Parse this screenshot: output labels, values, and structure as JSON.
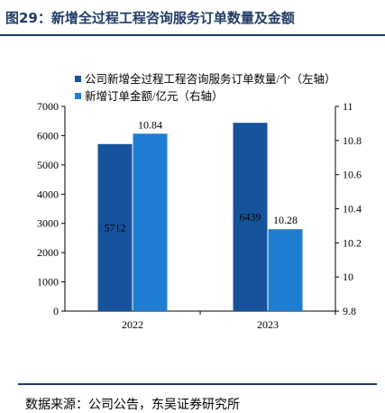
{
  "header": {
    "title": "图29：新增全过程工程咨询服务订单数量及金额"
  },
  "footer": {
    "source": "数据来源：公司公告，东吴证券研究所"
  },
  "colors": {
    "series_count": "#17539c",
    "series_amount": "#1f7dd1",
    "header_rule": "#1f3b66"
  },
  "chart_data": {
    "type": "bar",
    "categories": [
      "2022",
      "2023"
    ],
    "series": [
      {
        "name": "公司新增全过程工程咨询服务订单数量/个（左轴）",
        "values": [
          5712,
          6439
        ],
        "labels": [
          "5712",
          "6439"
        ],
        "axis": "left",
        "color": "#17539c"
      },
      {
        "name": "新增订单金额/亿元（右轴）",
        "values": [
          10.84,
          10.28
        ],
        "labels": [
          "10.84",
          "10.28"
        ],
        "axis": "right",
        "color": "#1f7dd1"
      }
    ],
    "left_axis": {
      "ylim": [
        0,
        7000
      ],
      "ticks": [
        "0",
        "1000",
        "2000",
        "3000",
        "4000",
        "5000",
        "6000",
        "7000"
      ]
    },
    "right_axis": {
      "ylim": [
        9.8,
        11
      ],
      "ticks": [
        "9.8",
        "10",
        "10.2",
        "10.4",
        "10.6",
        "10.8",
        "11"
      ]
    },
    "grid": false,
    "legend_position": "top-right"
  }
}
